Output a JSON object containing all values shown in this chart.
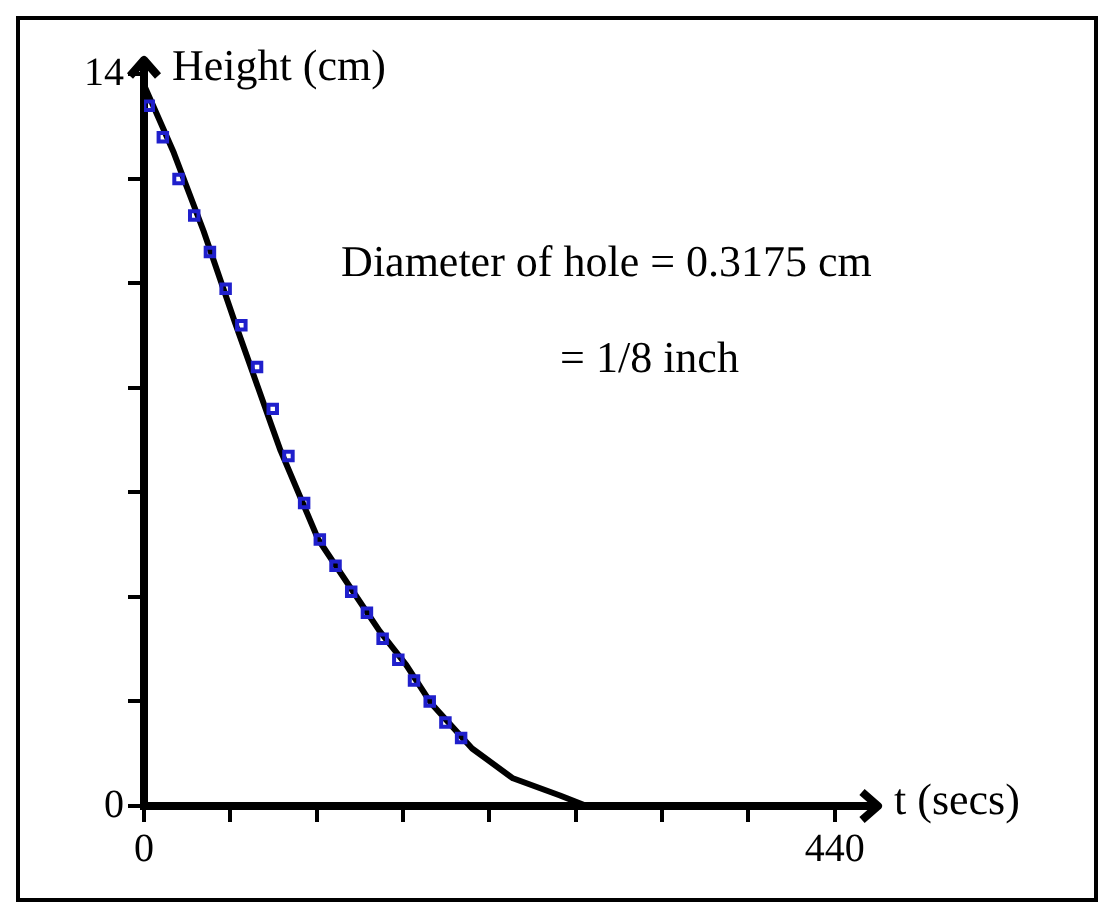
{
  "chart_data": {
    "type": "scatter",
    "xlabel": "t (secs)",
    "ylabel": "Height (cm)",
    "annotations": [
      "Diameter of hole = 0.3175 cm",
      "= 1/8 inch"
    ],
    "xlim": [
      0,
      465
    ],
    "xticks": [
      0,
      {
        "value": 55,
        "label": null
      },
      {
        "value": 110,
        "label": null
      },
      {
        "value": 165,
        "label": null
      },
      {
        "value": 220,
        "label": null
      },
      {
        "value": 275,
        "label": null
      },
      {
        "value": 330,
        "label": null
      },
      {
        "value": 385,
        "label": null
      },
      440
    ],
    "ylim": [
      0,
      14.2
    ],
    "yticks": [
      0,
      {
        "value": 2,
        "label": null
      },
      {
        "value": 4,
        "label": null
      },
      {
        "value": 6,
        "label": null
      },
      {
        "value": 8,
        "label": null
      },
      {
        "value": 10,
        "label": null
      },
      {
        "value": 12,
        "label": null
      },
      14
    ],
    "grid": false,
    "legend": false,
    "series": [
      {
        "type": "scatter",
        "marker": "square",
        "color": "#1f1fcc",
        "x": [
          3,
          12,
          22,
          32,
          42,
          52,
          62,
          72,
          82,
          92,
          102,
          112,
          122,
          132,
          142,
          152,
          162,
          172,
          182,
          192,
          202
        ],
        "values": [
          13.4,
          12.8,
          12.0,
          11.3,
          10.6,
          9.9,
          9.2,
          8.4,
          7.6,
          6.7,
          5.8,
          5.1,
          4.6,
          4.1,
          3.7,
          3.2,
          2.8,
          2.4,
          2.0,
          1.6,
          1.3
        ]
      },
      {
        "type": "line",
        "marker": "none",
        "color": "#000000",
        "x": [
          0,
          19,
          38,
          58,
          81,
          87,
          111,
          131,
          150,
          167,
          183,
          209,
          235,
          265,
          282
        ],
        "values": [
          13.8,
          12.5,
          11.0,
          9.25,
          7.3,
          6.8,
          5.1,
          4.2,
          3.35,
          2.7,
          1.96,
          1.1,
          0.53,
          0.2,
          0
        ]
      }
    ]
  }
}
